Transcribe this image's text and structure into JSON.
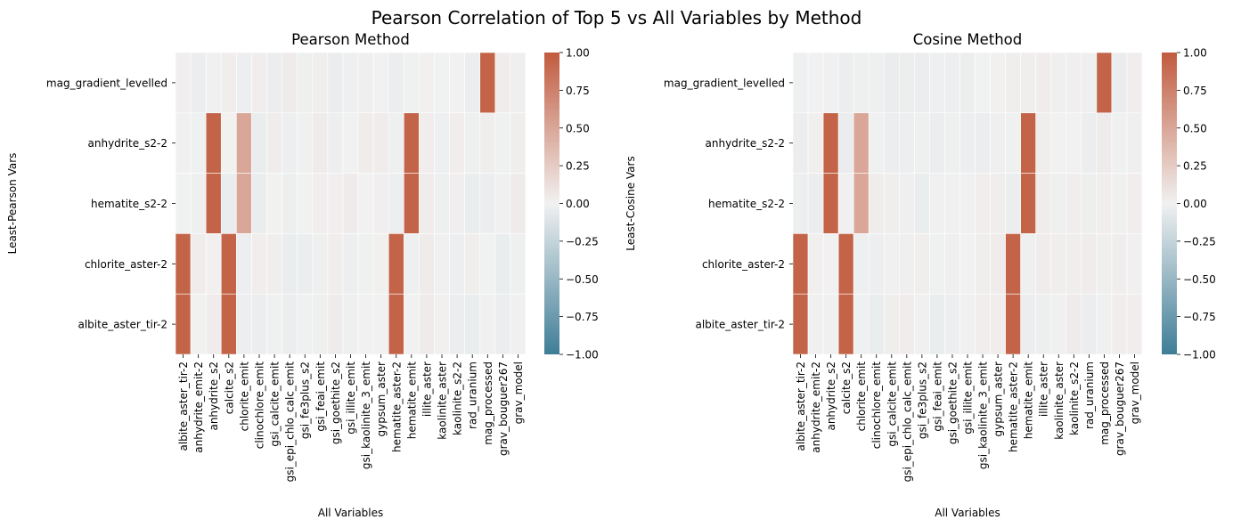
{
  "figure": {
    "suptitle": "Pearson Correlation of Top 5 vs All Variables by Method"
  },
  "chart_data": [
    {
      "type": "heatmap",
      "title": "Pearson Method",
      "xlabel": "All Variables",
      "ylabel": "Least-Pearson Vars",
      "rows": [
        "mag_gradient_levelled",
        "anhydrite_s2-2",
        "hematite_s2-2",
        "chlorite_aster-2",
        "albite_aster_tir-2"
      ],
      "columns": [
        "albite_aster_tir-2",
        "anhydrite_emit-2",
        "anhydrite_s2",
        "calcite_s2",
        "chlorite_emit",
        "clinochlore_emit",
        "gsi_calcite_emit",
        "gsi_epi_chlo_calc_emit",
        "gsi_fe3plus_s2",
        "gsi_feai_emit",
        "gsi_goethite_s2",
        "gsi_illite_emit",
        "gsi_kaolinite_3_emit",
        "gypsum_aster",
        "hematite_aster-2",
        "hematite_emit",
        "illite_aster",
        "kaolinite_aster",
        "kaolinite_s2-2",
        "rad_uranium",
        "mag_processed",
        "grav_bouguer267",
        "grav_model"
      ],
      "highlights": [
        {
          "row": "mag_gradient_levelled",
          "column": "mag_processed",
          "value": 0.95
        },
        {
          "row": "anhydrite_s2-2",
          "column": "anhydrite_s2",
          "value": 0.95
        },
        {
          "row": "anhydrite_s2-2",
          "column": "chlorite_emit",
          "value": 0.5
        },
        {
          "row": "anhydrite_s2-2",
          "column": "hematite_emit",
          "value": 0.95
        },
        {
          "row": "hematite_s2-2",
          "column": "anhydrite_s2",
          "value": 0.95
        },
        {
          "row": "hematite_s2-2",
          "column": "chlorite_emit",
          "value": 0.5
        },
        {
          "row": "hematite_s2-2",
          "column": "hematite_emit",
          "value": 0.95
        },
        {
          "row": "chlorite_aster-2",
          "column": "albite_aster_tir-2",
          "value": 0.95
        },
        {
          "row": "chlorite_aster-2",
          "column": "calcite_s2",
          "value": 0.95
        },
        {
          "row": "chlorite_aster-2",
          "column": "hematite_aster-2",
          "value": 0.95
        },
        {
          "row": "albite_aster_tir-2",
          "column": "albite_aster_tir-2",
          "value": 0.95
        },
        {
          "row": "albite_aster_tir-2",
          "column": "calcite_s2",
          "value": 0.95
        },
        {
          "row": "albite_aster_tir-2",
          "column": "hematite_aster-2",
          "value": 0.95
        }
      ],
      "background_value": 0.0,
      "colorbar": {
        "range": [
          -1.0,
          1.0
        ],
        "ticks": [
          "1.00",
          "0.75",
          "0.50",
          "0.25",
          "0.00",
          "−0.25",
          "−0.50",
          "−0.75",
          "−1.00"
        ]
      }
    },
    {
      "type": "heatmap",
      "title": "Cosine Method",
      "xlabel": "All Variables",
      "ylabel": "Least-Cosine Vars",
      "rows": [
        "mag_gradient_levelled",
        "anhydrite_s2-2",
        "hematite_s2-2",
        "chlorite_aster-2",
        "albite_aster_tir-2"
      ],
      "columns": [
        "albite_aster_tir-2",
        "anhydrite_emit-2",
        "anhydrite_s2",
        "calcite_s2",
        "chlorite_emit",
        "clinochlore_emit",
        "gsi_calcite_emit",
        "gsi_epi_chlo_calc_emit",
        "gsi_fe3plus_s2",
        "gsi_feai_emit",
        "gsi_goethite_s2",
        "gsi_illite_emit",
        "gsi_kaolinite_3_emit",
        "gypsum_aster",
        "hematite_aster-2",
        "hematite_emit",
        "illite_aster",
        "kaolinite_aster",
        "kaolinite_s2-2",
        "rad_uranium",
        "mag_processed",
        "grav_bouguer267",
        "grav_model"
      ],
      "highlights": [
        {
          "row": "mag_gradient_levelled",
          "column": "mag_processed",
          "value": 0.95
        },
        {
          "row": "anhydrite_s2-2",
          "column": "anhydrite_s2",
          "value": 0.95
        },
        {
          "row": "anhydrite_s2-2",
          "column": "chlorite_emit",
          "value": 0.5
        },
        {
          "row": "anhydrite_s2-2",
          "column": "hematite_emit",
          "value": 0.95
        },
        {
          "row": "hematite_s2-2",
          "column": "anhydrite_s2",
          "value": 0.95
        },
        {
          "row": "hematite_s2-2",
          "column": "chlorite_emit",
          "value": 0.5
        },
        {
          "row": "hematite_s2-2",
          "column": "hematite_emit",
          "value": 0.95
        },
        {
          "row": "chlorite_aster-2",
          "column": "albite_aster_tir-2",
          "value": 0.95
        },
        {
          "row": "chlorite_aster-2",
          "column": "calcite_s2",
          "value": 0.95
        },
        {
          "row": "chlorite_aster-2",
          "column": "hematite_aster-2",
          "value": 0.95
        },
        {
          "row": "albite_aster_tir-2",
          "column": "albite_aster_tir-2",
          "value": 0.95
        },
        {
          "row": "albite_aster_tir-2",
          "column": "calcite_s2",
          "value": 0.95
        },
        {
          "row": "albite_aster_tir-2",
          "column": "hematite_aster-2",
          "value": 0.95
        }
      ],
      "background_value": 0.0,
      "colorbar": {
        "range": [
          -1.0,
          1.0
        ],
        "ticks": [
          "1.00",
          "0.75",
          "0.50",
          "0.25",
          "0.00",
          "−0.25",
          "−0.50",
          "−0.75",
          "−1.00"
        ]
      }
    }
  ]
}
